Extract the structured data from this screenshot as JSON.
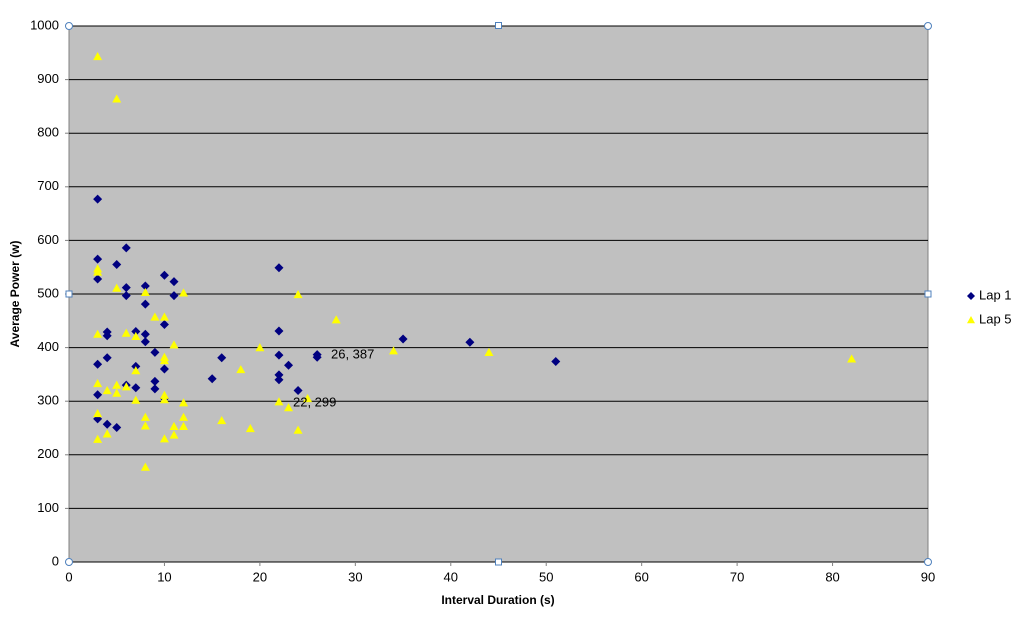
{
  "chart_data": {
    "type": "scatter",
    "x_label": "Interval  Duration  (s)",
    "y_label": "Average  Power  (w)",
    "xlim": [
      0,
      90
    ],
    "xticks": [
      0,
      10,
      20,
      30,
      40,
      50,
      60,
      70,
      80,
      90
    ],
    "ylim": [
      0,
      1000
    ],
    "yticks": [
      0,
      100,
      200,
      300,
      400,
      500,
      600,
      700,
      800,
      900,
      1000
    ],
    "grid": true,
    "legend": "right",
    "annotations": [
      "26, 387",
      "22, 299"
    ],
    "series": [
      {
        "name": "Lap 1",
        "color": "#000080",
        "marker": "diamond",
        "x": [
          3,
          3,
          3,
          3,
          3,
          3,
          4,
          4,
          4,
          4,
          5,
          5,
          6,
          6,
          6,
          6,
          7,
          7,
          7,
          8,
          8,
          8,
          8,
          9,
          9,
          9,
          10,
          10,
          10,
          10,
          11,
          11,
          15,
          16,
          22,
          22,
          22,
          22,
          22,
          23,
          24,
          26,
          26,
          35,
          42,
          51
        ],
        "values": [
          677,
          565,
          528,
          369,
          312,
          267,
          429,
          422,
          381,
          257,
          555,
          251,
          586,
          512,
          497,
          330,
          430,
          365,
          325,
          515,
          481,
          425,
          411,
          391,
          337,
          323,
          535,
          443,
          360,
          305,
          523,
          497,
          342,
          381,
          549,
          431,
          386,
          349,
          340,
          367,
          320,
          387,
          382,
          416,
          410,
          374
        ]
      },
      {
        "name": "Lap 5",
        "color": "#ffff00",
        "marker": "triangle",
        "x": [
          3,
          3,
          3,
          3,
          3,
          3,
          3,
          4,
          4,
          5,
          5,
          5,
          5,
          6,
          6,
          7,
          7,
          7,
          8,
          8,
          8,
          8,
          9,
          10,
          10,
          10,
          10,
          10,
          10,
          11,
          11,
          11,
          12,
          12,
          12,
          12,
          16,
          18,
          19,
          20,
          22,
          23,
          24,
          24,
          25,
          28,
          34,
          44,
          82
        ],
        "values": [
          943,
          547,
          541,
          425,
          333,
          277,
          229,
          320,
          239,
          864,
          511,
          330,
          315,
          427,
          327,
          421,
          357,
          302,
          503,
          270,
          254,
          177,
          457,
          457,
          382,
          376,
          311,
          303,
          230,
          405,
          253,
          237,
          502,
          297,
          270,
          253,
          264,
          359,
          249,
          400,
          299,
          288,
          499,
          246,
          305,
          452,
          394,
          391,
          379
        ]
      }
    ]
  }
}
